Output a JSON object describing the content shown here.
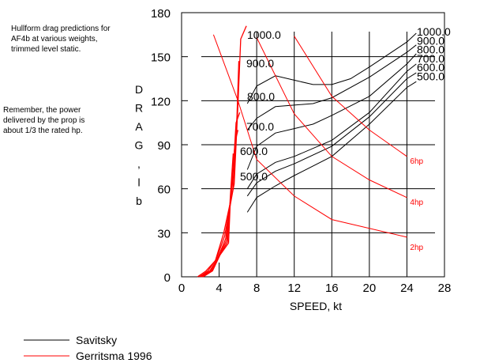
{
  "notes": {
    "title": "Hullform drag predictions for\nAF4b at various weights,\ntrimmed level static.",
    "remark": "Remember, the power\ndelivered by the prop is\nabout 1/3 the rated hp."
  },
  "chart_data": {
    "type": "line",
    "title": "Hullform drag predictions for AF4b at various weights, trimmed level static.",
    "xlabel": "SPEED, kt",
    "ylabel": "D R A G , l b",
    "xlim": [
      0,
      28
    ],
    "ylim": [
      0,
      180
    ],
    "xticks": [
      0,
      4,
      8,
      12,
      16,
      20,
      24,
      28
    ],
    "yticks": [
      0,
      30,
      60,
      90,
      120,
      150,
      180
    ],
    "grid": true,
    "legend": [
      {
        "name": "Savitsky",
        "color": "#000000"
      },
      {
        "name": "Gerritsma 1996",
        "color": "#ff0000"
      }
    ],
    "savitsky": [
      {
        "name": "1000.0",
        "x": [
          7,
          8,
          10,
          12,
          14,
          16,
          18,
          20,
          24,
          25
        ],
        "y": [
          118,
          130,
          137,
          134,
          131,
          131,
          135,
          143,
          160,
          166
        ]
      },
      {
        "name": "900.0",
        "x": [
          7,
          8,
          10,
          12,
          14,
          16,
          20,
          24,
          25
        ],
        "y": [
          100,
          108,
          116,
          117,
          118,
          122,
          136,
          153,
          158
        ]
      },
      {
        "name": "800.0",
        "x": [
          7,
          8,
          10,
          12,
          14,
          16,
          20,
          24,
          25
        ],
        "y": [
          73,
          89,
          98,
          101,
          104,
          110,
          123,
          145,
          152
        ]
      },
      {
        "name": "700.0",
        "x": [
          7,
          8,
          10,
          12,
          16,
          20,
          24,
          25
        ],
        "y": [
          60,
          70,
          78,
          82,
          93,
          112,
          140,
          145
        ]
      },
      {
        "name": "600.0",
        "x": [
          7,
          8,
          10,
          12,
          16,
          20,
          24,
          25
        ],
        "y": [
          55,
          64,
          72,
          77,
          89,
          109,
          135,
          139
        ]
      },
      {
        "name": "500.0",
        "x": [
          7,
          8,
          10,
          12,
          16,
          20,
          24,
          25
        ],
        "y": [
          44,
          54,
          62,
          69,
          82,
          104,
          129,
          133
        ]
      }
    ],
    "gerritsma_labels": [
      "1000.0",
      "900.0",
      "800.0",
      "700.0",
      "600.0",
      "500.0"
    ],
    "gerritsma": [
      {
        "name": "1000.0",
        "x": [
          1.7,
          2.6,
          3.6,
          4.5,
          5.6,
          6.0,
          6.3,
          6.9
        ],
        "y": [
          0,
          4,
          11,
          30,
          63,
          117,
          162,
          171
        ]
      },
      {
        "name": "900.0",
        "x": [
          1.9,
          2.8,
          3.7,
          4.6,
          5.5,
          5.9,
          6.1
        ],
        "y": [
          0,
          4,
          12,
          28,
          60,
          110,
          147
        ]
      },
      {
        "name": "800.0",
        "x": [
          2.0,
          3.0,
          3.8,
          4.7,
          5.4,
          5.8,
          6.2
        ],
        "y": [
          0,
          4,
          12,
          26,
          62,
          105,
          112
        ]
      },
      {
        "name": "700.0",
        "x": [
          2.1,
          3.1,
          3.9,
          4.8,
          5.3,
          5.7,
          6.0
        ],
        "y": [
          0,
          4,
          13,
          25,
          58,
          92,
          100
        ]
      },
      {
        "name": "600.0",
        "x": [
          2.2,
          3.2,
          4.0,
          4.9,
          5.2,
          5.5
        ],
        "y": [
          0,
          4,
          14,
          24,
          55,
          84
        ]
      },
      {
        "name": "500.0",
        "x": [
          2.3,
          3.3,
          4.1,
          5.0,
          5.2,
          5.4
        ],
        "y": [
          0,
          4,
          15,
          23,
          52,
          67
        ]
      }
    ],
    "power_curves": [
      {
        "name": "6hp",
        "x": [
          12,
          16,
          20,
          24
        ],
        "y": [
          164,
          123,
          100,
          82
        ]
      },
      {
        "name": "4hp",
        "x": [
          8,
          12,
          16,
          20,
          24
        ],
        "y": [
          163,
          111,
          82,
          66,
          54
        ]
      },
      {
        "name": "2hp",
        "x": [
          3.4,
          6,
          8,
          12,
          16,
          24
        ],
        "y": [
          165,
          120,
          80,
          55,
          39,
          27
        ]
      }
    ]
  },
  "colors": {
    "savitsky": "#000000",
    "gerritsma": "#ff0000"
  }
}
